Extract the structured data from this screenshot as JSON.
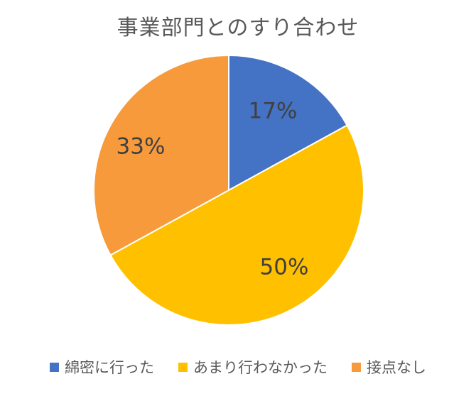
{
  "chart_data": {
    "type": "pie",
    "title": "事業部門とのすり合わせ",
    "categories": [
      "綿密に行った",
      "あまり行わなかった",
      "接点なし"
    ],
    "values": [
      17,
      50,
      33
    ],
    "data_labels": [
      "17%",
      "50%",
      "33%"
    ],
    "colors": [
      "#4472C4",
      "#FFC000",
      "#F79A3C"
    ],
    "legend_position": "bottom",
    "start_angle": "12 o'clock, clockwise"
  }
}
